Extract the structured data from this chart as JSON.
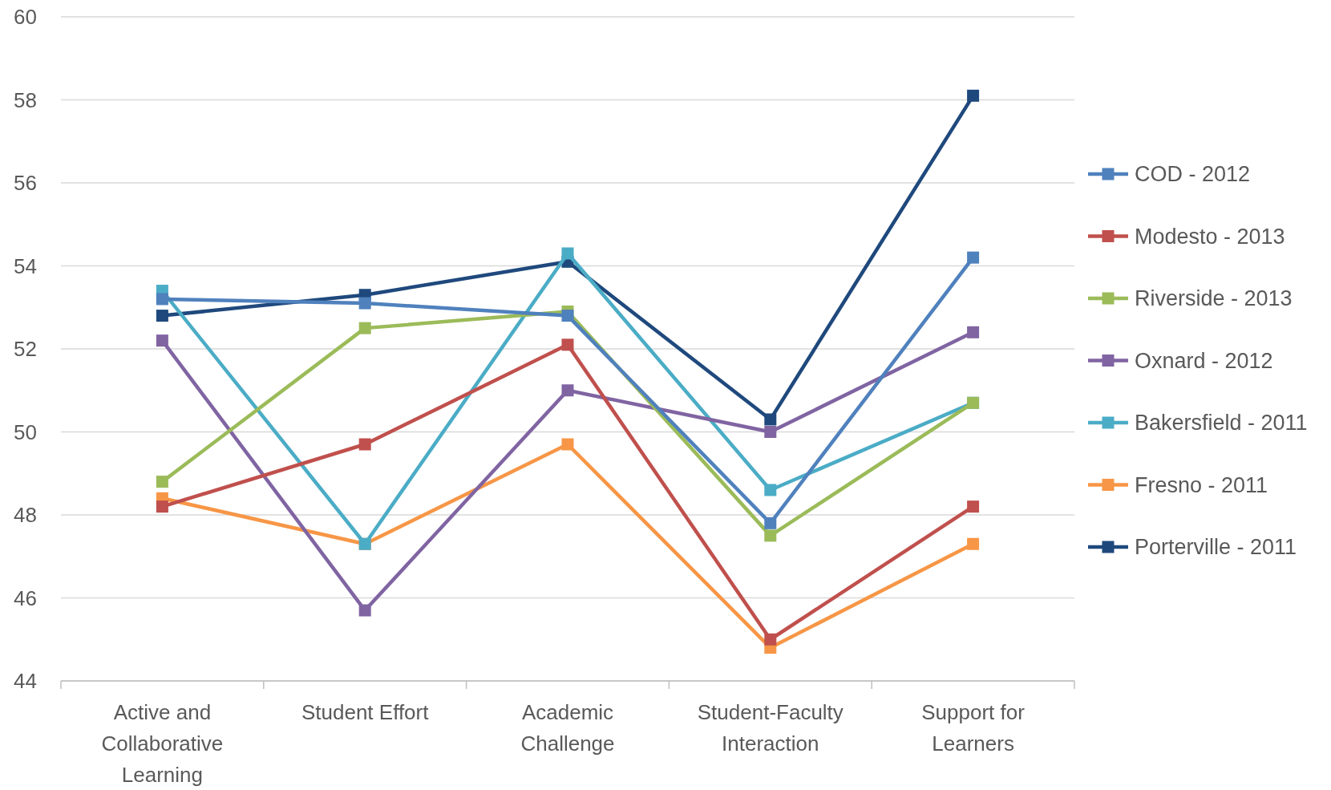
{
  "chart_data": {
    "type": "line",
    "categories": [
      "Active and Collaborative Learning",
      "Student Effort",
      "Academic Challenge",
      "Student-Faculty Interaction",
      "Support for Learners"
    ],
    "series": [
      {
        "name": "COD - 2012",
        "color": "#4f81bd",
        "values": [
          53.2,
          53.1,
          52.8,
          47.8,
          54.2
        ]
      },
      {
        "name": "Modesto - 2013",
        "color": "#c0504d",
        "values": [
          48.2,
          49.7,
          52.1,
          45.0,
          48.2
        ]
      },
      {
        "name": "Riverside - 2013",
        "color": "#9bbb59",
        "values": [
          48.8,
          52.5,
          52.9,
          47.5,
          50.7
        ]
      },
      {
        "name": "Oxnard - 2012",
        "color": "#8064a2",
        "values": [
          52.2,
          45.7,
          51.0,
          50.0,
          52.4
        ]
      },
      {
        "name": "Bakersfield - 2011",
        "color": "#4bacc6",
        "values": [
          53.4,
          47.3,
          54.3,
          48.6,
          50.7
        ]
      },
      {
        "name": "Fresno - 2011",
        "color": "#f79646",
        "values": [
          48.4,
          47.3,
          49.7,
          44.8,
          47.3
        ]
      },
      {
        "name": "Porterville - 2011",
        "color": "#1f497d",
        "values": [
          52.8,
          53.3,
          54.1,
          50.3,
          58.1
        ]
      }
    ],
    "ylim": [
      44,
      60
    ],
    "yticks": [
      44,
      46,
      48,
      50,
      52,
      54,
      56,
      58,
      60
    ],
    "grid": "y",
    "legend": "right",
    "marker": "square",
    "line_style": "solid"
  }
}
